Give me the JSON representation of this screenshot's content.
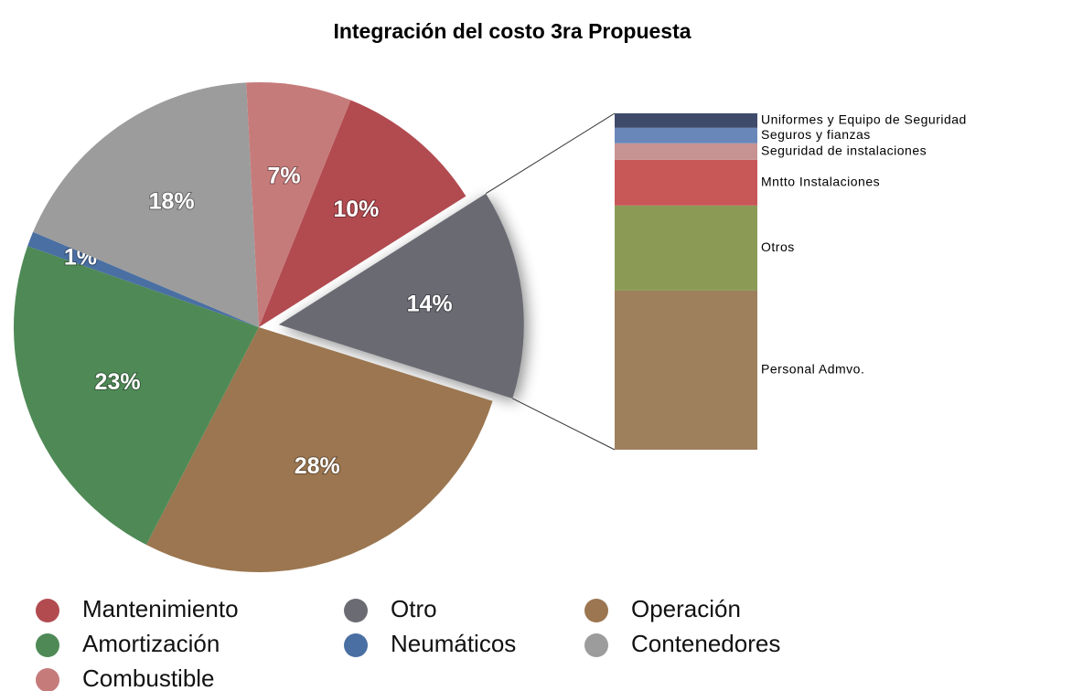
{
  "chart_data": [
    {
      "type": "pie",
      "title": "Integración del costo 3ra Propuesta",
      "categories": [
        "Mantenimiento",
        "Otro",
        "Operación",
        "Amortización",
        "Neumáticos",
        "Contenedores",
        "Combustible"
      ],
      "values": [
        10,
        14,
        28,
        23,
        1,
        18,
        7
      ],
      "value_labels": [
        "10%",
        "14%",
        "28%",
        "23%",
        "1%",
        "18%",
        "7%"
      ],
      "colors": [
        "#b24b50",
        "#6b6b73",
        "#9b7650",
        "#4f8a56",
        "#4a6fa3",
        "#9c9c9c",
        "#c67b7b"
      ]
    },
    {
      "type": "stacked_bar",
      "categories": [
        "Personal Admvo.",
        "Otros",
        "Mntto Instalaciones",
        "Seguridad de instalaciones",
        "Seguros y fianzas",
        "Uniformes  y Equipo de Seguridad"
      ],
      "values": [
        47.3,
        25.3,
        13.6,
        4.9,
        4.6,
        4.3
      ],
      "colors": [
        "#9e805d",
        "#8b9b56",
        "#c85757",
        "#c79292",
        "#6a87b9",
        "#3f4b6b"
      ]
    }
  ]
}
